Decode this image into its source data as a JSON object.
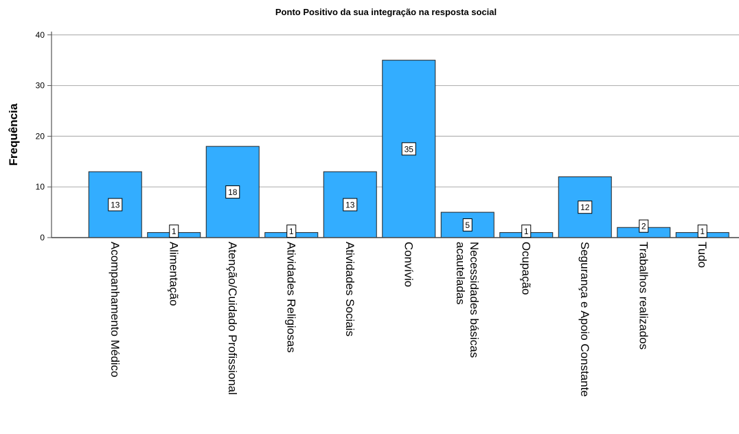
{
  "chart_data": {
    "type": "bar",
    "title": "Ponto Positivo da sua integração na resposta social",
    "xlabel": "",
    "ylabel": "Frequência",
    "ylim": [
      0,
      42
    ],
    "yticks": [
      0,
      10,
      20,
      30,
      40
    ],
    "grid": true,
    "bar_color": "#33adff",
    "categories": [
      "Acompanhamento Médico",
      "Alimentação",
      "Atenção/Cuidado Profissional",
      "Atividades Religiosas",
      "Atividades Sociais",
      "Convívio",
      "Necessidades básicas acauteladas",
      "Ocupação",
      "Segurança e Apoio Constante",
      "Trabalhos realizados",
      "Tudo"
    ],
    "category_lines": [
      [
        "Acompanhamento Médico"
      ],
      [
        "Alimentação"
      ],
      [
        "Atenção/Cuidado Profissional"
      ],
      [
        "Atividades Religiosas"
      ],
      [
        "Atividades Sociais"
      ],
      [
        "Convívio"
      ],
      [
        "Necessidades básicas",
        "acauteladas"
      ],
      [
        "Ocupação"
      ],
      [
        "Segurança e Apoio Constante"
      ],
      [
        "Trabalhos realizados"
      ],
      [
        "Tudo"
      ]
    ],
    "values": [
      13,
      1,
      18,
      1,
      13,
      35,
      5,
      1,
      12,
      2,
      1
    ],
    "data_labels": [
      "13",
      "1",
      "18",
      "1",
      "13",
      "35",
      "5",
      "1",
      "12",
      "2",
      "1"
    ]
  }
}
